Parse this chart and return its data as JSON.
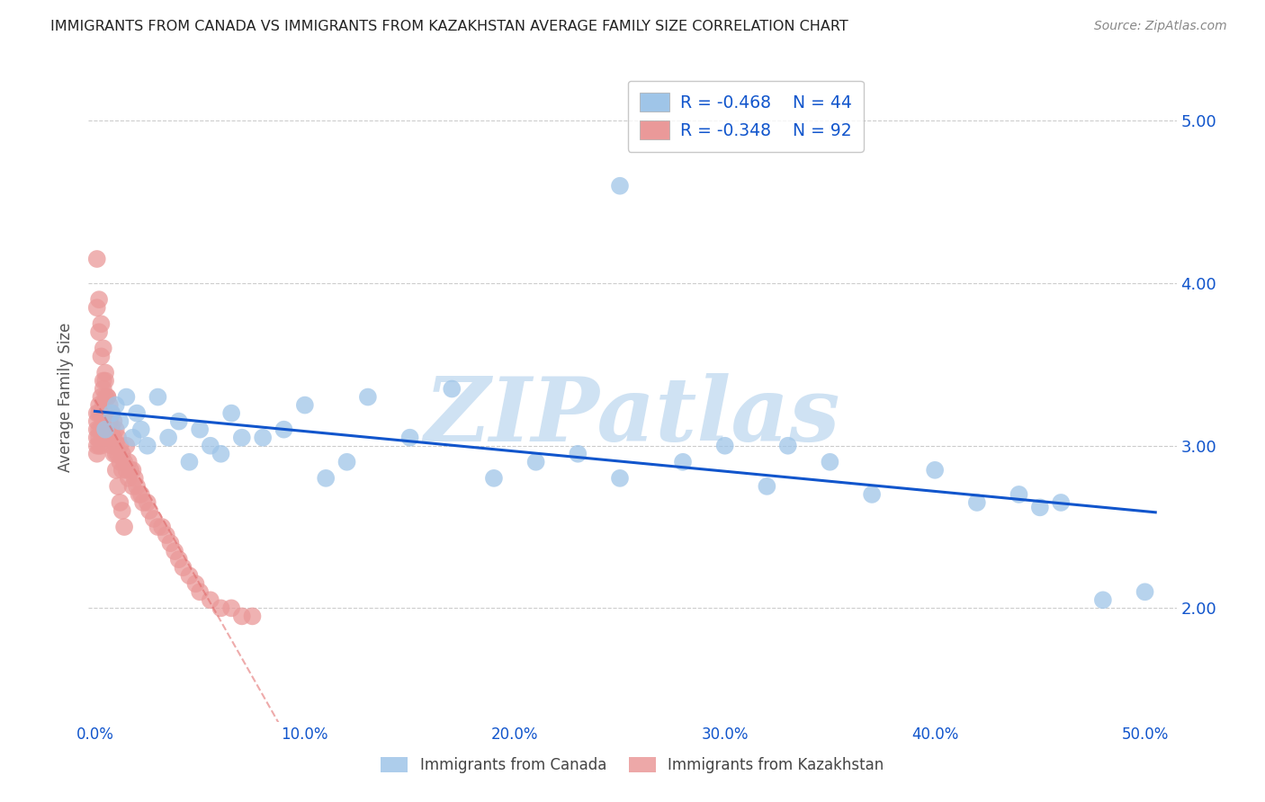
{
  "title": "IMMIGRANTS FROM CANADA VS IMMIGRANTS FROM KAZAKHSTAN AVERAGE FAMILY SIZE CORRELATION CHART",
  "source": "Source: ZipAtlas.com",
  "ylabel": "Average Family Size",
  "ymin": 1.3,
  "ymax": 5.3,
  "xmin": -0.003,
  "xmax": 0.515,
  "yticks": [
    2.0,
    3.0,
    4.0,
    5.0
  ],
  "xticks": [
    0.0,
    0.1,
    0.2,
    0.3,
    0.4,
    0.5
  ],
  "xtick_labels": [
    "0.0%",
    "10.0%",
    "20.0%",
    "30.0%",
    "40.0%",
    "50.0%"
  ],
  "blue_color": "#9fc5e8",
  "pink_color": "#ea9999",
  "blue_line_color": "#1155cc",
  "pink_line_color": "#e06666",
  "watermark_color": "#cfe2f3",
  "legend_r_canada": "R = -0.468",
  "legend_n_canada": "N = 44",
  "legend_r_kazakhstan": "R = -0.348",
  "legend_n_kazakhstan": "N = 92",
  "canada_x": [
    0.005,
    0.008,
    0.01,
    0.012,
    0.015,
    0.018,
    0.02,
    0.022,
    0.025,
    0.03,
    0.035,
    0.04,
    0.045,
    0.05,
    0.055,
    0.06,
    0.065,
    0.07,
    0.08,
    0.09,
    0.1,
    0.11,
    0.12,
    0.13,
    0.15,
    0.17,
    0.19,
    0.21,
    0.23,
    0.25,
    0.28,
    0.3,
    0.32,
    0.33,
    0.35,
    0.37,
    0.4,
    0.42,
    0.44,
    0.46,
    0.48,
    0.5,
    0.25,
    0.45
  ],
  "canada_y": [
    3.1,
    3.2,
    3.25,
    3.15,
    3.3,
    3.05,
    3.2,
    3.1,
    3.0,
    3.3,
    3.05,
    3.15,
    2.9,
    3.1,
    3.0,
    2.95,
    3.2,
    3.05,
    3.05,
    3.1,
    3.25,
    2.8,
    2.9,
    3.3,
    3.05,
    3.35,
    2.8,
    2.9,
    2.95,
    2.8,
    2.9,
    3.0,
    2.75,
    3.0,
    2.9,
    2.7,
    2.85,
    2.65,
    2.7,
    2.65,
    2.05,
    2.1,
    4.6,
    2.62
  ],
  "kazakhstan_x": [
    0.001,
    0.001,
    0.001,
    0.001,
    0.001,
    0.001,
    0.002,
    0.002,
    0.002,
    0.002,
    0.002,
    0.003,
    0.003,
    0.003,
    0.003,
    0.004,
    0.004,
    0.004,
    0.004,
    0.005,
    0.005,
    0.005,
    0.005,
    0.006,
    0.006,
    0.006,
    0.007,
    0.007,
    0.007,
    0.008,
    0.008,
    0.008,
    0.009,
    0.009,
    0.01,
    0.01,
    0.01,
    0.011,
    0.011,
    0.012,
    0.012,
    0.013,
    0.013,
    0.014,
    0.015,
    0.015,
    0.016,
    0.016,
    0.017,
    0.018,
    0.018,
    0.019,
    0.02,
    0.021,
    0.022,
    0.023,
    0.025,
    0.026,
    0.028,
    0.03,
    0.032,
    0.034,
    0.036,
    0.038,
    0.04,
    0.042,
    0.045,
    0.048,
    0.05,
    0.055,
    0.06,
    0.065,
    0.07,
    0.075,
    0.001,
    0.001,
    0.002,
    0.002,
    0.003,
    0.003,
    0.004,
    0.004,
    0.005,
    0.006,
    0.007,
    0.008,
    0.009,
    0.01,
    0.011,
    0.012,
    0.013,
    0.014
  ],
  "kazakhstan_y": [
    3.2,
    3.15,
    3.1,
    3.05,
    3.0,
    2.95,
    3.25,
    3.2,
    3.1,
    3.05,
    3.0,
    3.3,
    3.2,
    3.1,
    3.0,
    3.35,
    3.25,
    3.15,
    3.05,
    3.4,
    3.3,
    3.2,
    3.1,
    3.3,
    3.2,
    3.1,
    3.25,
    3.15,
    3.05,
    3.2,
    3.1,
    3.0,
    3.15,
    3.05,
    3.1,
    3.0,
    2.95,
    3.05,
    2.95,
    3.0,
    2.9,
    2.95,
    2.85,
    2.9,
    3.0,
    2.85,
    2.9,
    2.8,
    2.85,
    2.85,
    2.75,
    2.8,
    2.75,
    2.7,
    2.7,
    2.65,
    2.65,
    2.6,
    2.55,
    2.5,
    2.5,
    2.45,
    2.4,
    2.35,
    2.3,
    2.25,
    2.2,
    2.15,
    2.1,
    2.05,
    2.0,
    2.0,
    1.95,
    1.95,
    4.15,
    3.85,
    3.9,
    3.7,
    3.75,
    3.55,
    3.6,
    3.4,
    3.45,
    3.3,
    3.15,
    3.05,
    2.95,
    2.85,
    2.75,
    2.65,
    2.6,
    2.5
  ]
}
